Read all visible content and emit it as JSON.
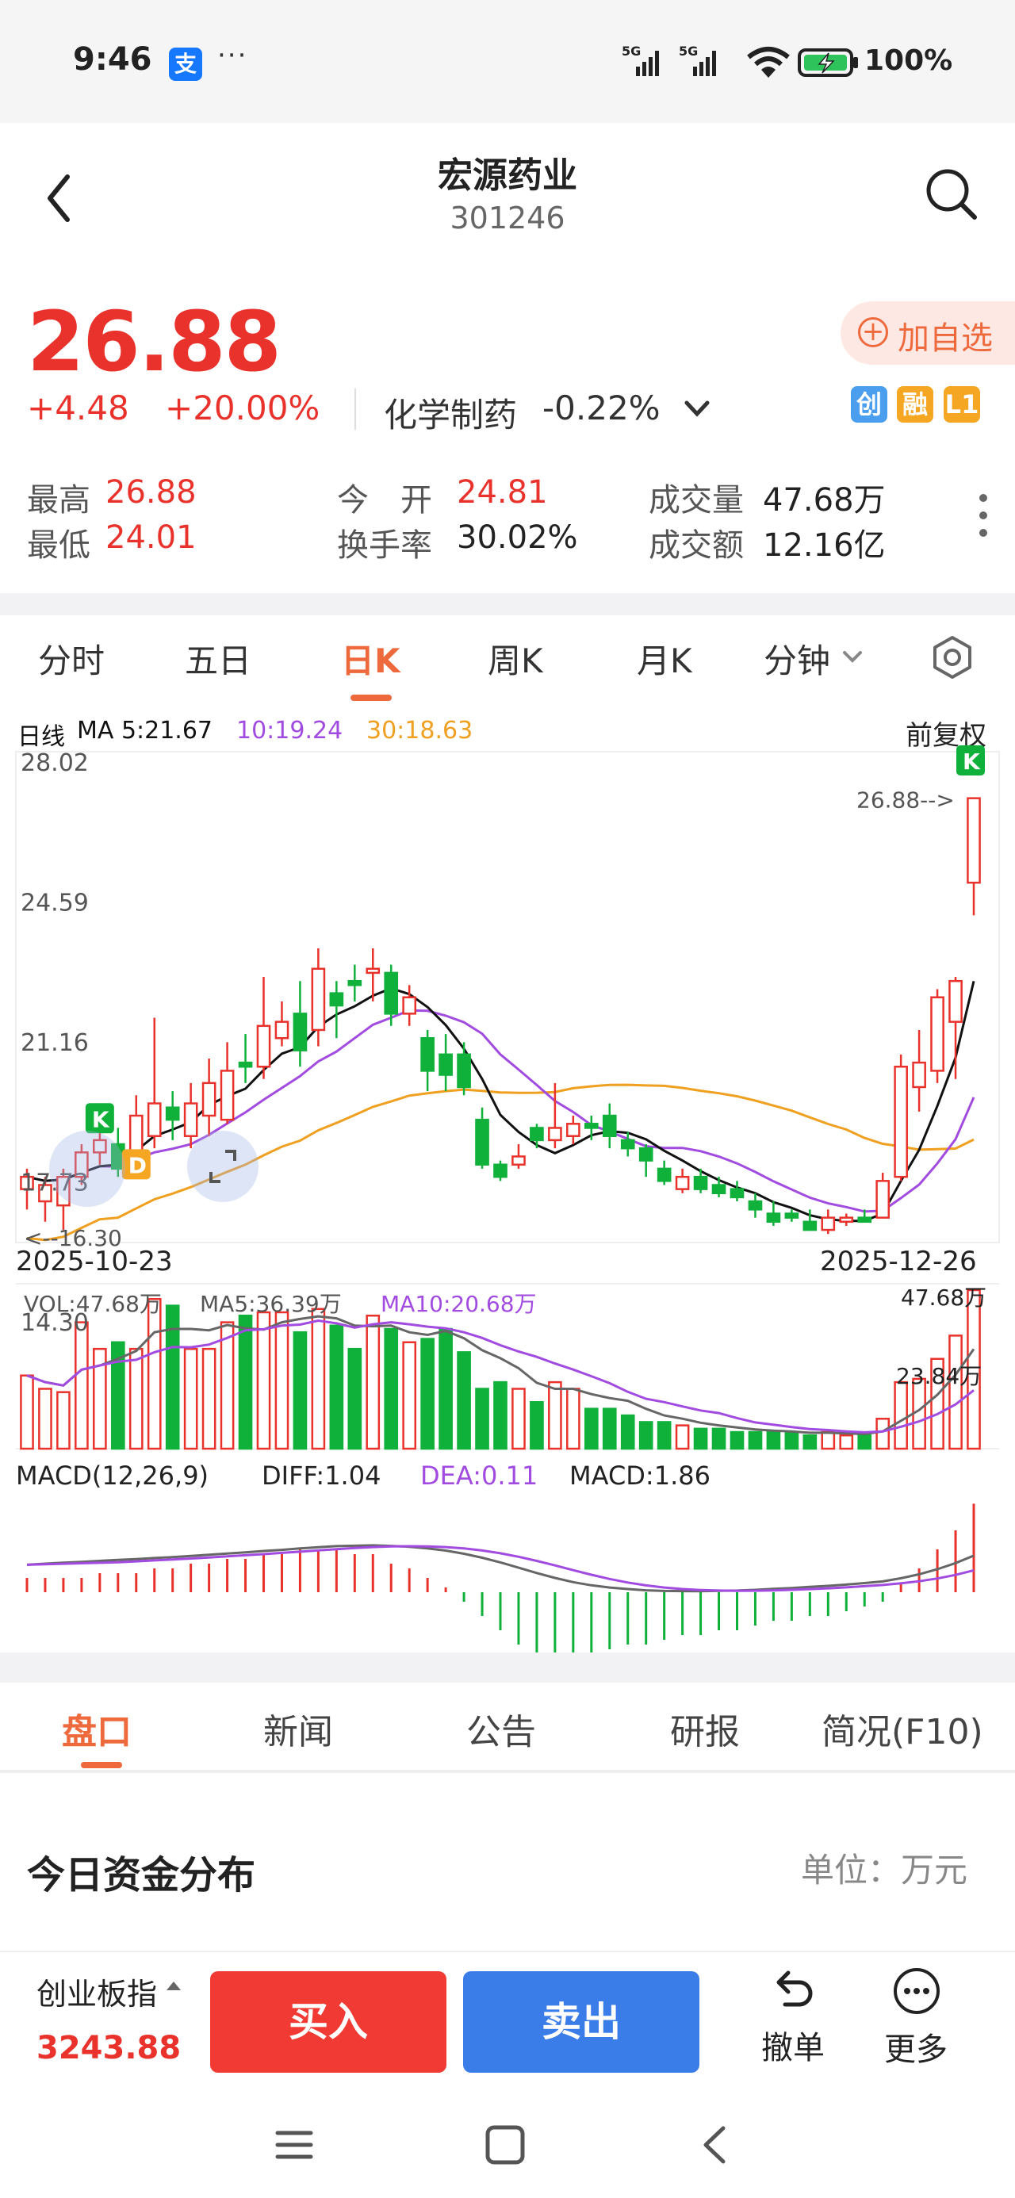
{
  "status_bar": {
    "time": "9:46",
    "app_badge": "支",
    "more": "···",
    "battery": "100%"
  },
  "header": {
    "title": "宏源药业",
    "code": "301246"
  },
  "quote": {
    "price": "26.88",
    "change": "+4.48",
    "change_pct": "+20.00%",
    "sector": "化学制药",
    "sector_pct": "-0.22%",
    "add_watch": "加自选",
    "badges": [
      {
        "text": "创",
        "color": "#4a9eed"
      },
      {
        "text": "融",
        "color": "#f5a623"
      },
      {
        "text": "L1",
        "color": "#f5a623"
      }
    ],
    "stats": {
      "high_label": "最高",
      "high": "26.88",
      "low_label": "最低",
      "low": "24.01",
      "open_label": "今　开",
      "open": "24.81",
      "turnover_label": "换手率",
      "turnover": "30.02%",
      "volume_label": "成交量",
      "volume": "47.68万",
      "amount_label": "成交额",
      "amount": "12.16亿"
    }
  },
  "chart_tabs": [
    "分时",
    "五日",
    "日K",
    "周K",
    "月K",
    "分钟"
  ],
  "chart_tab_active": 2,
  "chart_header": {
    "line": "日线",
    "ma5": "MA 5:21.67",
    "ma10": "10:19.24",
    "ma30": "30:18.63",
    "adjust": "前复权",
    "colors": {
      "ma5": "#111111",
      "ma10": "#a24be0",
      "ma30": "#f0a020",
      "up": "#e8322b",
      "down": "#10b13a"
    }
  },
  "chart_data": [
    {
      "type": "candlestick",
      "axis_labels": [
        "28.02",
        "24.59",
        "21.16",
        "17.73",
        "14.30"
      ],
      "ylim": [
        14.3,
        28.02
      ],
      "x_start": "2025-10-23",
      "x_end": "2025-12-26",
      "last_price_label": "26.88-->",
      "min_price_label": "<--16.30",
      "markers": [
        "K",
        "D",
        "K"
      ],
      "candles": [
        [
          17.3,
          17.6,
          16.8,
          17.8
        ],
        [
          17.0,
          17.4,
          16.5,
          17.6
        ],
        [
          16.9,
          17.6,
          16.3,
          17.8
        ],
        [
          17.6,
          18.2,
          17.4,
          18.4
        ],
        [
          18.2,
          18.5,
          17.9,
          18.9
        ],
        [
          18.4,
          17.8,
          17.6,
          18.8
        ],
        [
          18.0,
          19.1,
          17.9,
          19.6
        ],
        [
          18.6,
          19.4,
          18.3,
          21.5
        ],
        [
          19.3,
          19.0,
          18.5,
          19.7
        ],
        [
          18.6,
          19.4,
          18.3,
          19.9
        ],
        [
          19.1,
          19.9,
          18.6,
          20.5
        ],
        [
          19.0,
          20.2,
          18.9,
          20.9
        ],
        [
          20.4,
          20.3,
          19.9,
          21.1
        ],
        [
          20.3,
          21.3,
          20.0,
          22.5
        ],
        [
          21.0,
          21.4,
          20.8,
          21.9
        ],
        [
          21.6,
          20.7,
          20.3,
          22.4
        ],
        [
          21.2,
          22.7,
          20.8,
          23.2
        ],
        [
          22.1,
          21.8,
          21.0,
          22.4
        ],
        [
          22.4,
          22.3,
          21.9,
          22.8
        ],
        [
          22.6,
          22.7,
          21.9,
          23.2
        ],
        [
          22.6,
          21.6,
          21.3,
          22.8
        ],
        [
          21.6,
          22.0,
          21.3,
          22.3
        ],
        [
          21.0,
          20.2,
          19.7,
          21.2
        ],
        [
          20.6,
          20.1,
          19.7,
          21.1
        ],
        [
          20.6,
          19.8,
          19.6,
          20.9
        ],
        [
          19.0,
          17.9,
          17.8,
          19.3
        ],
        [
          17.9,
          17.6,
          17.5,
          18.0
        ],
        [
          17.9,
          18.1,
          17.8,
          18.4
        ],
        [
          18.8,
          18.5,
          18.3,
          18.9
        ],
        [
          18.5,
          18.8,
          18.3,
          19.9
        ],
        [
          18.6,
          18.9,
          18.4,
          19.1
        ],
        [
          18.9,
          18.8,
          18.5,
          19.1
        ],
        [
          19.1,
          18.6,
          18.3,
          19.4
        ],
        [
          18.5,
          18.3,
          18.1,
          18.7
        ],
        [
          18.3,
          18.0,
          17.6,
          18.4
        ],
        [
          17.8,
          17.5,
          17.4,
          18.0
        ],
        [
          17.3,
          17.6,
          17.2,
          17.8
        ],
        [
          17.6,
          17.3,
          17.2,
          17.8
        ],
        [
          17.4,
          17.2,
          17.1,
          17.6
        ],
        [
          17.3,
          17.1,
          17.0,
          17.5
        ],
        [
          17.0,
          16.8,
          16.6,
          17.2
        ],
        [
          16.7,
          16.5,
          16.4,
          17.0
        ],
        [
          16.7,
          16.6,
          16.5,
          16.8
        ],
        [
          16.5,
          16.3,
          16.3,
          16.8
        ],
        [
          16.3,
          16.6,
          16.2,
          16.8
        ],
        [
          16.5,
          16.6,
          16.4,
          16.7
        ],
        [
          16.6,
          16.5,
          16.5,
          16.8
        ],
        [
          16.6,
          17.5,
          16.6,
          17.7
        ],
        [
          17.6,
          20.3,
          17.5,
          20.6
        ],
        [
          19.8,
          20.4,
          19.2,
          21.2
        ],
        [
          20.2,
          22.0,
          19.9,
          22.2
        ],
        [
          21.4,
          22.4,
          20.0,
          22.5
        ],
        [
          24.81,
          26.88,
          24.01,
          26.88
        ]
      ]
    },
    {
      "type": "bar",
      "legend": {
        "vol": "VOL:47.68万",
        "ma5": "MA5:36.39万",
        "ma10": "MA10:20.68万"
      },
      "axis_labels": [
        "47.68万",
        "23.84万"
      ],
      "ylim": [
        0,
        47.68
      ],
      "values": [
        22,
        18,
        17,
        38,
        30,
        32,
        30,
        45,
        43,
        30,
        30,
        38,
        40,
        41,
        41,
        35,
        42,
        37,
        30,
        40,
        36,
        32,
        33,
        36,
        29,
        18,
        20,
        18,
        14,
        20,
        18,
        12,
        12,
        10,
        8,
        8,
        7,
        6,
        6,
        5,
        5,
        5,
        5,
        4,
        5,
        4,
        4,
        9,
        20,
        21,
        27,
        34,
        47.68
      ]
    },
    {
      "type": "bar",
      "legend": {
        "title": "MACD(12,26,9)",
        "diff": "DIFF:1.04",
        "dea": "DEA:0.11",
        "macd": "MACD:1.86"
      },
      "values": [
        0.3,
        0.3,
        0.3,
        0.3,
        0.4,
        0.4,
        0.4,
        0.5,
        0.5,
        0.6,
        0.6,
        0.7,
        0.7,
        0.8,
        0.8,
        0.9,
        0.9,
        0.9,
        0.8,
        0.8,
        0.6,
        0.5,
        0.3,
        0.1,
        -0.2,
        -0.5,
        -0.8,
        -1.1,
        -1.3,
        -1.4,
        -1.4,
        -1.3,
        -1.2,
        -1.1,
        -1.1,
        -1.0,
        -0.9,
        -0.9,
        -0.8,
        -0.8,
        -0.7,
        -0.6,
        -0.6,
        -0.5,
        -0.5,
        -0.4,
        -0.3,
        -0.2,
        0.2,
        0.5,
        0.9,
        1.3,
        1.86
      ]
    }
  ],
  "info_tabs": [
    "盘口",
    "新闻",
    "公告",
    "研报",
    "简况(F10)"
  ],
  "info_tab_active": 0,
  "section": {
    "title": "今日资金分布",
    "unit": "单位：万元"
  },
  "bottom_bar": {
    "index_name": "创业板指",
    "index_value": "3243.88",
    "buy": "买入",
    "sell": "卖出",
    "revoke": "撤单",
    "more": "更多"
  }
}
